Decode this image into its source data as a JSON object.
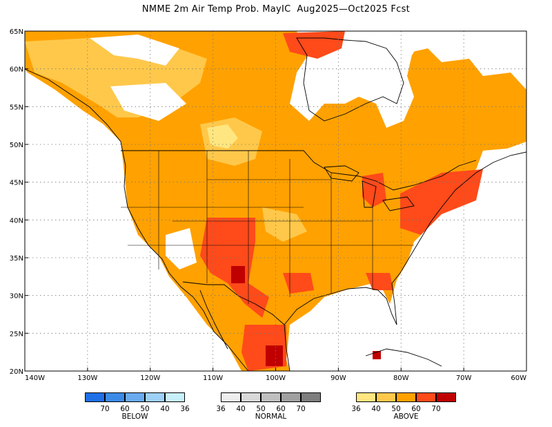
{
  "title": "NMME 2m Air Temp Prob. MayIC  Aug2025—Oct2025 Fcst",
  "map": {
    "lon_range": [
      -140,
      -60
    ],
    "lat_range": [
      20,
      65
    ],
    "lon_ticks": [
      "140W",
      "130W",
      "120W",
      "110W",
      "100W",
      "90W",
      "80W",
      "70W",
      "60W"
    ],
    "lat_ticks": [
      "65N",
      "60N",
      "55N",
      "50N",
      "45N",
      "40N",
      "35N",
      "30N",
      "25N",
      "20N"
    ],
    "grid": "dotted"
  },
  "legend": {
    "below": {
      "label": "BELOW",
      "colors": [
        "#1f6fe6",
        "#3c8ae8",
        "#6aaaf0",
        "#9dd0f6",
        "#c8f0fa"
      ],
      "ticks": [
        "70",
        "60",
        "50",
        "40",
        "36"
      ]
    },
    "normal": {
      "label": "NORMAL",
      "colors": [
        "#eeeeee",
        "#d9d9d9",
        "#bfbfbf",
        "#a0a0a0",
        "#7d7d7d"
      ],
      "ticks": [
        "36",
        "40",
        "50",
        "60",
        "70"
      ]
    },
    "above": {
      "label": "ABOVE",
      "colors": [
        "#ffe680",
        "#ffc84a",
        "#ffa100",
        "#ff4a1a",
        "#c00000"
      ],
      "ticks": [
        "36",
        "40",
        "50",
        "60",
        "70"
      ]
    }
  }
}
